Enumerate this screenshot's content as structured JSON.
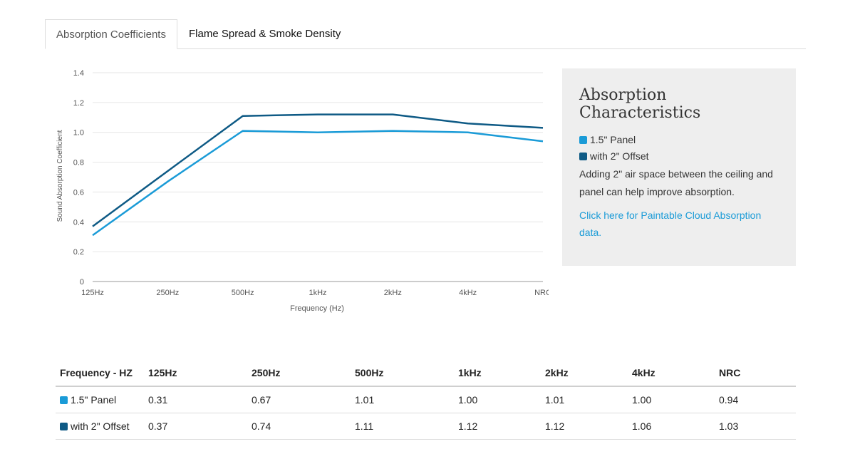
{
  "tabs": [
    {
      "label": "Absorption Coefficients",
      "active": true
    },
    {
      "label": "Flame Spread & Smoke Density",
      "active": false
    }
  ],
  "colors": {
    "panel": "#1a9bd7",
    "offset": "#0e5a85"
  },
  "chart_data": {
    "type": "line",
    "categories": [
      "125Hz",
      "250Hz",
      "500Hz",
      "1kHz",
      "2kHz",
      "4kHz",
      "NRC"
    ],
    "series": [
      {
        "name": "1.5\" Panel",
        "values": [
          0.31,
          0.67,
          1.01,
          1.0,
          1.01,
          1.0,
          0.94
        ]
      },
      {
        "name": "with 2\" Offset",
        "values": [
          0.37,
          0.74,
          1.11,
          1.12,
          1.12,
          1.06,
          1.03
        ]
      }
    ],
    "xlabel": "Frequency (Hz)",
    "ylabel": "Sound Absorption Coefficient",
    "ylim": [
      0,
      1.4
    ],
    "yticks": [
      "0",
      "0.2",
      "0.4",
      "0.6",
      "0.8",
      "1.0",
      "1.2",
      "1.4"
    ],
    "grid": true
  },
  "panel": {
    "title": "Absorption Characteristics",
    "legend": [
      "1.5\" Panel",
      "with 2\" Offset"
    ],
    "description": "Adding 2\" air space between the ceiling and panel can help improve absorption.",
    "link": "Click here for Paintable Cloud Absorption data."
  },
  "table": {
    "headers": [
      "Frequency - HZ",
      "125Hz",
      "250Hz",
      "500Hz",
      "1kHz",
      "2kHz",
      "4kHz",
      "NRC"
    ],
    "rows": [
      {
        "label": "1.5\" Panel",
        "values": [
          "0.31",
          "0.67",
          "1.01",
          "1.00",
          "1.01",
          "1.00",
          "0.94"
        ]
      },
      {
        "label": "with 2\" Offset",
        "values": [
          "0.37",
          "0.74",
          "1.11",
          "1.12",
          "1.12",
          "1.06",
          "1.03"
        ]
      }
    ]
  }
}
